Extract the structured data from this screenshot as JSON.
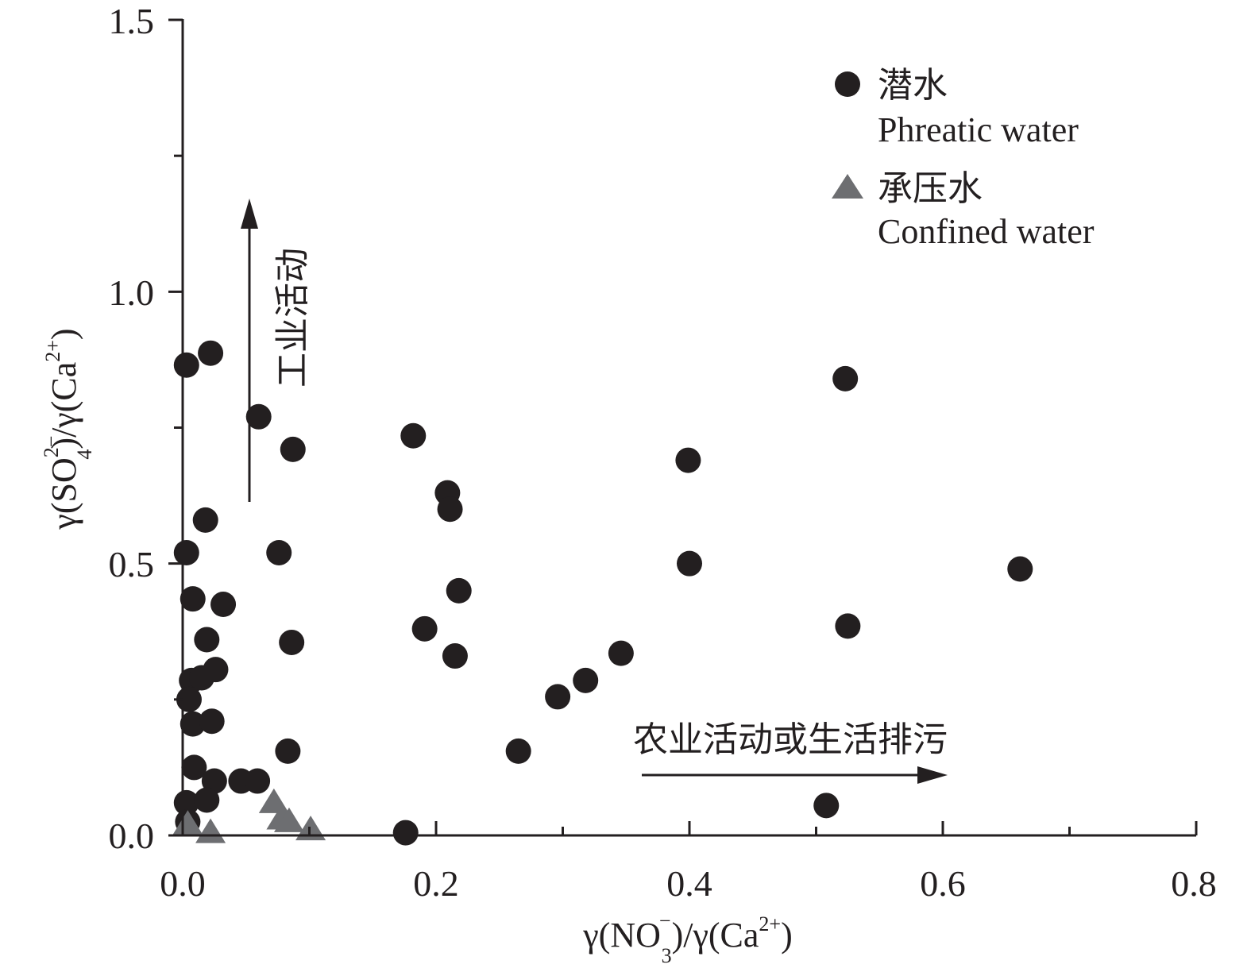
{
  "chart_data": {
    "type": "scatter",
    "x_axis": {
      "label_base": "γ(NO",
      "label_sub": "3",
      "label_sup": "−",
      "label_mid": ")/γ(Ca",
      "label_sup2": "2+",
      "label_end": ")",
      "range": [
        0,
        0.8
      ],
      "ticks": [
        "0.0",
        "0.2",
        "0.4",
        "0.6",
        "0.8"
      ]
    },
    "y_axis": {
      "label_base": "γ(SO",
      "label_sub": "4",
      "label_sup": "2−",
      "label_mid": ")/γ(Ca",
      "label_sup2": "2+",
      "label_end": ")",
      "range": [
        0,
        1.5
      ],
      "ticks": [
        "0.0",
        "0.5",
        "1.0",
        "1.5"
      ]
    },
    "legend": {
      "position": "top-right",
      "entries": [
        {
          "series": "phreatic",
          "label_cn": "潜水",
          "label_en": "Phreatic water"
        },
        {
          "series": "confined",
          "label_cn": "承压水",
          "label_en": "Confined water"
        }
      ]
    },
    "annotations": {
      "vertical_arrow_text": "工业活动",
      "horizontal_arrow_text": "农业活动或生活排污"
    },
    "colors": {
      "phreatic": "#231f20",
      "confined": "#6d6e71",
      "axis": "#231f20"
    },
    "series": [
      {
        "id": "phreatic",
        "marker": "circle",
        "points": [
          [
            0.003,
            0.865
          ],
          [
            0.022,
            0.887
          ],
          [
            0.06,
            0.77
          ],
          [
            0.087,
            0.71
          ],
          [
            0.018,
            0.58
          ],
          [
            0.003,
            0.52
          ],
          [
            0.076,
            0.52
          ],
          [
            0.008,
            0.435
          ],
          [
            0.032,
            0.425
          ],
          [
            0.019,
            0.36
          ],
          [
            0.086,
            0.355
          ],
          [
            0.007,
            0.285
          ],
          [
            0.015,
            0.29
          ],
          [
            0.026,
            0.305
          ],
          [
            0.005,
            0.25
          ],
          [
            0.008,
            0.205
          ],
          [
            0.023,
            0.21
          ],
          [
            0.009,
            0.125
          ],
          [
            0.083,
            0.155
          ],
          [
            0.025,
            0.1
          ],
          [
            0.046,
            0.1
          ],
          [
            0.059,
            0.1
          ],
          [
            0.003,
            0.06
          ],
          [
            0.019,
            0.065
          ],
          [
            0.004,
            0.025
          ],
          [
            0.182,
            0.735
          ],
          [
            0.209,
            0.63
          ],
          [
            0.211,
            0.6
          ],
          [
            0.218,
            0.45
          ],
          [
            0.191,
            0.38
          ],
          [
            0.215,
            0.33
          ],
          [
            0.265,
            0.155
          ],
          [
            0.296,
            0.255
          ],
          [
            0.318,
            0.285
          ],
          [
            0.346,
            0.335
          ],
          [
            0.399,
            0.69
          ],
          [
            0.4,
            0.5
          ],
          [
            0.523,
            0.84
          ],
          [
            0.525,
            0.385
          ],
          [
            0.508,
            0.055
          ],
          [
            0.661,
            0.49
          ],
          [
            0.176,
            0.005
          ]
        ]
      },
      {
        "id": "confined",
        "marker": "triangle",
        "points": [
          [
            0.072,
            0.06
          ],
          [
            0.078,
            0.03
          ],
          [
            0.084,
            0.025
          ],
          [
            0.101,
            0.01
          ],
          [
            0.022,
            0.005
          ],
          [
            0.004,
            0.02
          ]
        ]
      }
    ]
  }
}
